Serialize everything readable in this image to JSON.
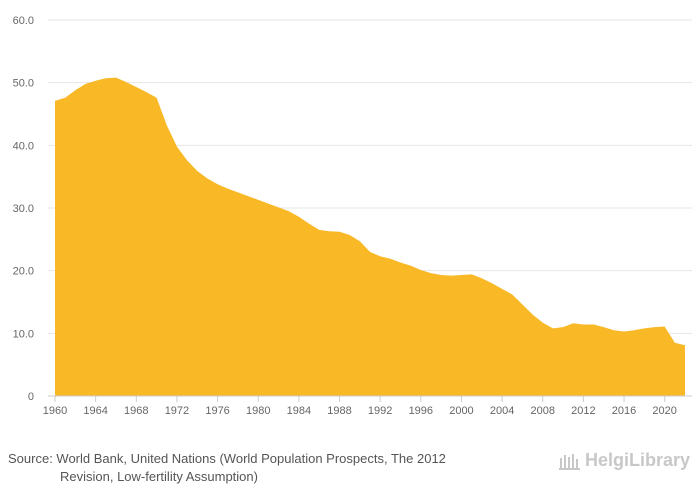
{
  "chart_data": {
    "type": "area",
    "title": "",
    "xlabel": "",
    "ylabel": "",
    "ylim": [
      0,
      60
    ],
    "yticks": [
      0,
      10,
      20,
      30,
      40,
      50,
      60
    ],
    "ytick_labels": [
      "0",
      "10.0",
      "20.0",
      "30.0",
      "40.0",
      "50.0",
      "60.0"
    ],
    "xlim": [
      1960,
      2022
    ],
    "xticks": [
      1960,
      1964,
      1968,
      1972,
      1976,
      1980,
      1984,
      1988,
      1992,
      1996,
      2000,
      2004,
      2008,
      2012,
      2016,
      2020
    ],
    "grid": true,
    "color": "#f9b826",
    "x": [
      1960,
      1961,
      1962,
      1963,
      1964,
      1965,
      1966,
      1967,
      1968,
      1969,
      1970,
      1971,
      1972,
      1973,
      1974,
      1975,
      1976,
      1977,
      1978,
      1979,
      1980,
      1981,
      1982,
      1983,
      1984,
      1985,
      1986,
      1987,
      1988,
      1989,
      1990,
      1991,
      1992,
      1993,
      1994,
      1995,
      1996,
      1997,
      1998,
      1999,
      2000,
      2001,
      2002,
      2003,
      2004,
      2005,
      2006,
      2007,
      2008,
      2009,
      2010,
      2011,
      2012,
      2013,
      2014,
      2015,
      2016,
      2017,
      2018,
      2019,
      2020,
      2021,
      2022
    ],
    "values": [
      47.1,
      47.6,
      48.8,
      49.8,
      50.3,
      50.7,
      50.8,
      50.1,
      49.3,
      48.5,
      47.6,
      43.2,
      39.8,
      37.6,
      35.9,
      34.7,
      33.8,
      33.1,
      32.5,
      31.9,
      31.3,
      30.7,
      30.1,
      29.5,
      28.6,
      27.5,
      26.5,
      26.3,
      26.2,
      25.7,
      24.7,
      23.0,
      22.3,
      21.9,
      21.3,
      20.8,
      20.1,
      19.6,
      19.3,
      19.2,
      19.3,
      19.4,
      18.8,
      18.0,
      17.1,
      16.2,
      14.6,
      13.0,
      11.7,
      10.8,
      11.0,
      11.6,
      11.4,
      11.4,
      11.0,
      10.5,
      10.3,
      10.5,
      10.8,
      11.0,
      11.1,
      8.5,
      8.1
    ]
  },
  "source": {
    "line1": "Source: World Bank, United Nations (World Population Prospects, The 2012",
    "line2": "Revision, Low-fertility Assumption)"
  },
  "brand": {
    "name": "HelgiLibrary",
    "icon": "library-logo-icon"
  }
}
